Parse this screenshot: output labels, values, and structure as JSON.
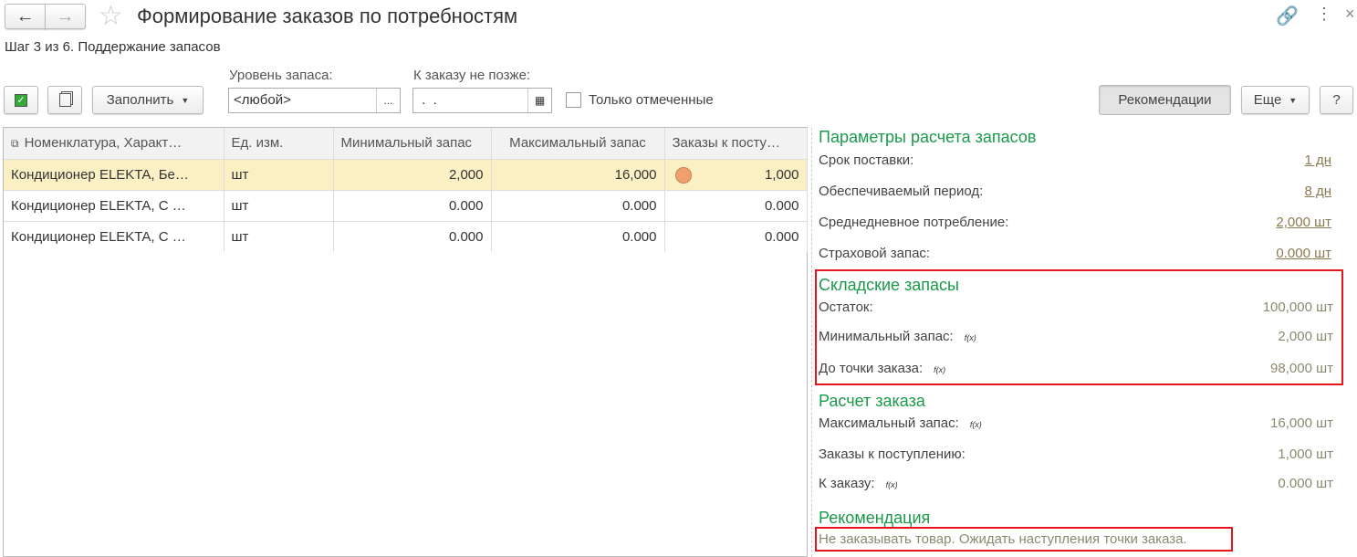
{
  "header": {
    "title": "Формирование заказов по потребностям",
    "step": "Шаг 3 из 6. Поддержание запасов"
  },
  "toolbar": {
    "fill_label": "Заполнить",
    "stock_level_label": "Уровень запаса:",
    "stock_level_value": "<любой>",
    "order_by_label": "К заказу не позже:",
    "order_by_value": " .  . ",
    "only_marked_label": "Только отмеченные",
    "only_marked_checked": false,
    "recommendations_label": "Рекомендации",
    "more_label": "Еще",
    "help_label": "?"
  },
  "table": {
    "columns": [
      "Номенклатура, Характ…",
      "Ед. изм.",
      "Минимальный запас",
      "Максимальный запас",
      "Заказы к посту…"
    ],
    "rows": [
      {
        "name": "Кондиционер ELEKTA, Бе…",
        "unit": "шт",
        "min": "2,000",
        "max": "16,000",
        "orders": "1,000",
        "status_color": "#f0a070"
      },
      {
        "name": "Кондиционер ELEKTA, С …",
        "unit": "шт",
        "min": "0.000",
        "max": "0.000",
        "orders": "0.000"
      },
      {
        "name": "Кондиционер ELEKTA, С …",
        "unit": "шт",
        "min": "0.000",
        "max": "0.000",
        "orders": "0.000"
      }
    ]
  },
  "panel": {
    "params": {
      "title": "Параметры расчета запасов",
      "items": [
        {
          "label": "Срок поставки:",
          "value": "1 дн"
        },
        {
          "label": "Обеспечиваемый период:",
          "value": "8 дн"
        },
        {
          "label": "Среднедневное потребление:",
          "value": "2,000 шт"
        },
        {
          "label": "Страховой запас:",
          "value": "0.000 шт"
        }
      ]
    },
    "stock": {
      "title": "Складские запасы",
      "items": [
        {
          "label": "Остаток:",
          "value": "100,000 шт"
        },
        {
          "label": "Минимальный запас:",
          "value": "2,000 шт",
          "fx": "f(x)"
        },
        {
          "label": "До точки заказа:",
          "value": "98,000 шт",
          "fx": "f(x)"
        }
      ]
    },
    "calc": {
      "title": "Расчет заказа",
      "items": [
        {
          "label": "Максимальный запас:",
          "value": "16,000 шт",
          "fx": "f(x)"
        },
        {
          "label": "Заказы к поступлению:",
          "value": "1,000 шт"
        },
        {
          "label": "К заказу:",
          "value": "0.000 шт",
          "fx": "f(x)"
        }
      ]
    },
    "recommendation": {
      "title": "Рекомендация",
      "text": "Не заказывать товар. Ожидать наступления точки заказа."
    }
  },
  "colors": {
    "section_title": "#1a9a4a",
    "highlight_box": "#e8141c",
    "selected_row": "#fbf0c4"
  }
}
